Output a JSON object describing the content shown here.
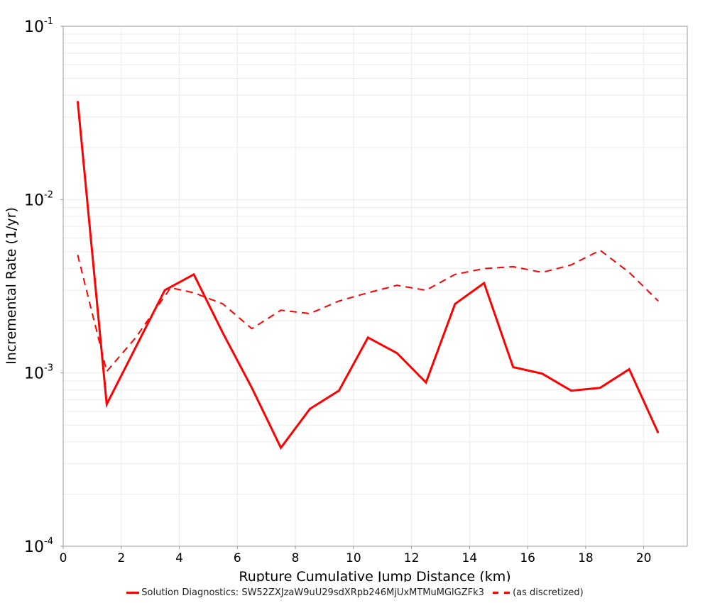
{
  "chart_data": {
    "type": "line",
    "title": "",
    "xlabel": "Rupture Cumulative Jump Distance (km)",
    "ylabel": "Incremental Rate (1/yr)",
    "xlim": [
      0,
      21.5
    ],
    "ylim": [
      0.0001,
      0.1
    ],
    "yscale": "log",
    "grid": true,
    "legend_position": "bottom",
    "x_ticks": [
      "0",
      "2",
      "4",
      "6",
      "8",
      "10",
      "12",
      "14",
      "16",
      "18",
      "20"
    ],
    "y_ticks": [
      {
        "base": "10",
        "exp": "-1"
      },
      {
        "base": "10",
        "exp": "-2"
      },
      {
        "base": "10",
        "exp": "-3"
      },
      {
        "base": "10",
        "exp": "-4"
      }
    ],
    "series": [
      {
        "name": "Solution Diagnostics: SW52ZXJzaW9uU29sdXRpb246MjUxMTMuMGlGZFk3",
        "style": "solid",
        "color": "#ff0000",
        "x": [
          0.5,
          1.5,
          3.5,
          4.5,
          5.5,
          6.5,
          7.5,
          8.5,
          9.5,
          10.5,
          11.5,
          12.5,
          13.5,
          14.5,
          15.5,
          16.5,
          17.5,
          18.5,
          19.5,
          20.5
        ],
        "values": [
          0.037,
          0.00066,
          0.003,
          0.0037,
          0.0017,
          0.00082,
          0.00037,
          0.00062,
          0.00079,
          0.0016,
          0.0013,
          0.00088,
          0.0025,
          0.0033,
          0.00108,
          0.00099,
          0.00079,
          0.00082,
          0.00105,
          0.00045
        ]
      },
      {
        "name": "(as discretized)",
        "style": "dashed",
        "color": "#ff0000",
        "x": [
          0.5,
          1.5,
          2.5,
          3.7,
          4.5,
          5.5,
          6.5,
          7.5,
          8.5,
          9.5,
          10.5,
          11.5,
          12.5,
          13.5,
          14.5,
          15.5,
          16.5,
          17.5,
          18.5,
          19.5,
          20.5
        ],
        "values": [
          0.0048,
          0.00102,
          0.0016,
          0.0031,
          0.0029,
          0.0025,
          0.0018,
          0.0023,
          0.0022,
          0.0026,
          0.0029,
          0.0032,
          0.003,
          0.0037,
          0.004,
          0.0041,
          0.0038,
          0.0042,
          0.0051,
          0.0038,
          0.0026
        ]
      }
    ]
  },
  "legend": {
    "items": [
      {
        "label": "Solution Diagnostics: SW52ZXJzaW9uU29sdXRpb246MjUxMTMuMGlGZFk3",
        "style": "solid"
      },
      {
        "label": "(as discretized)",
        "style": "dashed"
      }
    ]
  }
}
